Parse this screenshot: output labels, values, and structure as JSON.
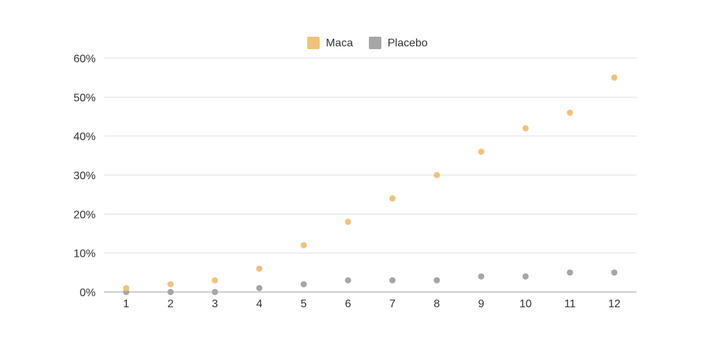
{
  "chart_data": {
    "type": "scatter",
    "x": [
      1,
      2,
      3,
      4,
      5,
      6,
      7,
      8,
      9,
      10,
      11,
      12
    ],
    "series": [
      {
        "name": "Maca",
        "color": "#f0c27b",
        "values": [
          1,
          2,
          3,
          6,
          12,
          18,
          24,
          30,
          36,
          42,
          46,
          55
        ]
      },
      {
        "name": "Placebo",
        "color": "#a6a6a6",
        "values": [
          0,
          0,
          0,
          1,
          2,
          3,
          3,
          3,
          4,
          4,
          5,
          5
        ]
      }
    ],
    "y_ticks": [
      0,
      10,
      20,
      30,
      40,
      50,
      60
    ],
    "y_tick_labels": [
      "0%",
      "10%",
      "20%",
      "30%",
      "40%",
      "50%",
      "60%"
    ],
    "x_tick_labels": [
      "1",
      "2",
      "3",
      "4",
      "5",
      "6",
      "7",
      "8",
      "9",
      "10",
      "11",
      "12"
    ],
    "ylim": [
      0,
      60
    ],
    "xlim": [
      0.5,
      12.5
    ],
    "grid": true,
    "legend_position": "top-center",
    "gridline_color": "#dddddd",
    "axis_color": "#999999"
  }
}
